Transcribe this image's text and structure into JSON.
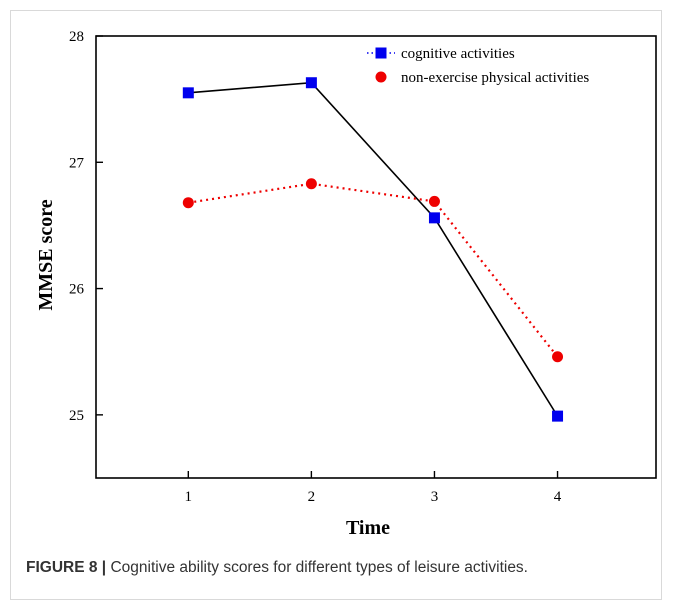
{
  "caption": {
    "label": "FIGURE 8 |",
    "text": "Cognitive ability scores for different types of leisure activities."
  },
  "colors": {
    "cognitive": "#0000ee",
    "physical": "#ee0000",
    "axis": "#000000"
  },
  "chart_data": {
    "type": "line",
    "x": [
      1,
      2,
      3,
      4
    ],
    "xlabel": "Time",
    "ylabel": "MMSE score",
    "xlim": [
      0.25,
      4.8
    ],
    "ylim": [
      24.5,
      28
    ],
    "xticks": [
      1,
      2,
      3,
      4
    ],
    "yticks": [
      25,
      26,
      27,
      28
    ],
    "grid": false,
    "legend": "top-right",
    "series": [
      {
        "name": "cognitive activities",
        "marker": "square",
        "line": "solid",
        "values": [
          27.55,
          27.63,
          26.56,
          24.99
        ]
      },
      {
        "name": "non-exercise physical activities",
        "marker": "circle",
        "line": "dotted",
        "values": [
          26.68,
          26.83,
          26.69,
          25.46
        ]
      }
    ]
  }
}
